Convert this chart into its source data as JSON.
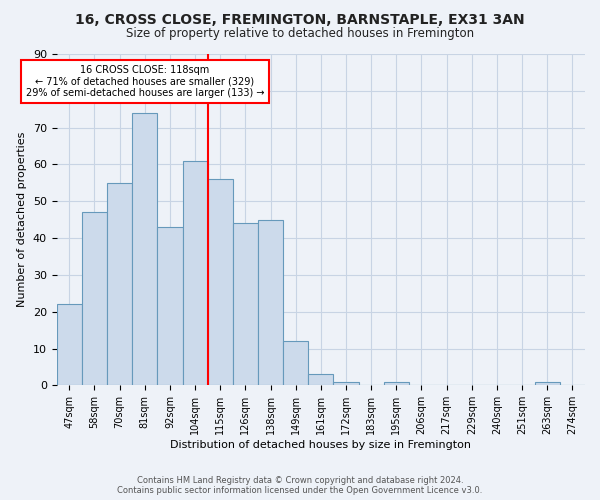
{
  "title": "16, CROSS CLOSE, FREMINGTON, BARNSTAPLE, EX31 3AN",
  "subtitle": "Size of property relative to detached houses in Fremington",
  "xlabel": "Distribution of detached houses by size in Fremington",
  "ylabel": "Number of detached properties",
  "bar_labels": [
    "47sqm",
    "58sqm",
    "70sqm",
    "81sqm",
    "92sqm",
    "104sqm",
    "115sqm",
    "126sqm",
    "138sqm",
    "149sqm",
    "161sqm",
    "172sqm",
    "183sqm",
    "195sqm",
    "206sqm",
    "217sqm",
    "229sqm",
    "240sqm",
    "251sqm",
    "263sqm",
    "274sqm"
  ],
  "bar_values": [
    22,
    47,
    55,
    74,
    43,
    61,
    56,
    44,
    45,
    12,
    3,
    1,
    0,
    1,
    0,
    0,
    0,
    0,
    0,
    1,
    0
  ],
  "bar_color": "#ccdaeb",
  "bar_edge_color": "#6699bb",
  "property_line_x": 5.5,
  "annotation_title": "16 CROSS CLOSE: 118sqm",
  "annotation_line1": "← 71% of detached houses are smaller (329)",
  "annotation_line2": "29% of semi-detached houses are larger (133) →",
  "footer1": "Contains HM Land Registry data © Crown copyright and database right 2024.",
  "footer2": "Contains public sector information licensed under the Open Government Licence v3.0.",
  "ylim": [
    0,
    90
  ],
  "grid_color": "#c8d4e4",
  "bg_color": "#eef2f8"
}
